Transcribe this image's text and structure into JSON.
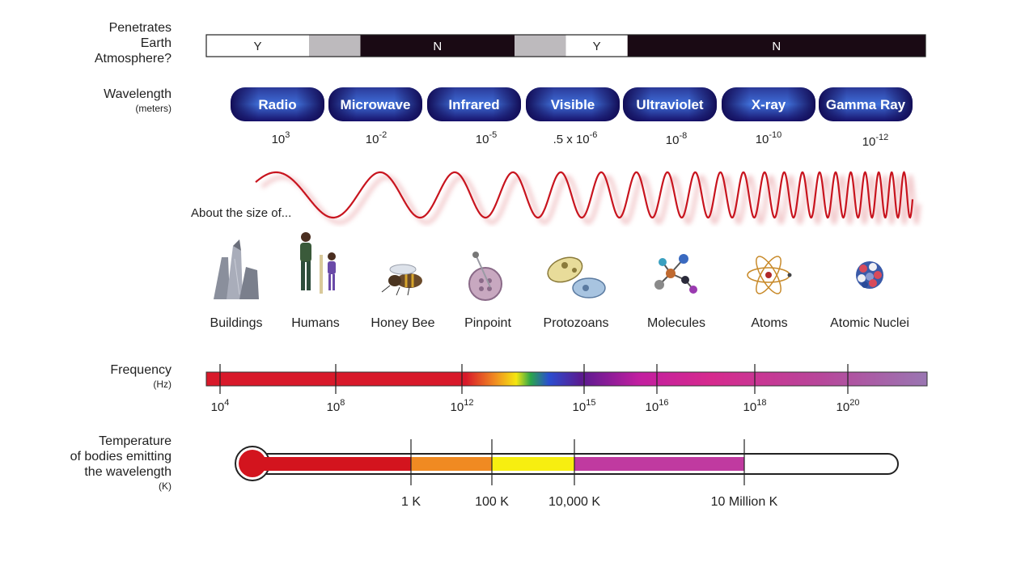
{
  "atmosphere": {
    "label": [
      "Penetrates",
      "Earth",
      "Atmosphere?"
    ],
    "segments": [
      {
        "text": "Y",
        "from": 0,
        "to": 1,
        "color": "#ffffff",
        "textColor": "#222222"
      },
      {
        "text": "",
        "from": 1,
        "to": 1.5,
        "color": "#bdbabd",
        "textColor": "#222222"
      },
      {
        "text": "N",
        "from": 1.5,
        "to": 3,
        "color": "#1a0a14",
        "textColor": "#ffffff"
      },
      {
        "text": "",
        "from": 3,
        "to": 3.5,
        "color": "#bdbabd",
        "textColor": "#222222"
      },
      {
        "text": "Y",
        "from": 3.5,
        "to": 4.1,
        "color": "#ffffff",
        "textColor": "#222222"
      },
      {
        "text": "N",
        "from": 4.1,
        "to": 7,
        "color": "#1a0a14",
        "textColor": "#ffffff"
      }
    ]
  },
  "wavelength": {
    "label": "Wavelength",
    "unit": "(meters)",
    "bands": [
      "Radio",
      "Microwave",
      "Infrared",
      "Visible",
      "Ultraviolet",
      "X-ray",
      "Gamma Ray"
    ],
    "values": [
      {
        "base": "10",
        "exp": "3"
      },
      {
        "base": "10",
        "exp": "-2"
      },
      {
        "base": "10",
        "exp": "-5"
      },
      {
        "base": ".5 x 10",
        "exp": "-6"
      },
      {
        "base": "10",
        "exp": "-8"
      },
      {
        "base": "10",
        "exp": "-10"
      },
      {
        "base": "10",
        "exp": "-12"
      }
    ]
  },
  "size": {
    "label": "About the size of...",
    "items": [
      {
        "name": "Buildings",
        "icon": "buildings-icon"
      },
      {
        "name": "Humans",
        "icon": "humans-icon"
      },
      {
        "name": "Honey Bee",
        "icon": "honey-bee-icon"
      },
      {
        "name": "Pinpoint",
        "icon": "pinpoint-icon"
      },
      {
        "name": "Protozoans",
        "icon": "protozoans-icon"
      },
      {
        "name": "Molecules",
        "icon": "molecules-icon"
      },
      {
        "name": "Atoms",
        "icon": "atoms-icon"
      },
      {
        "name": "Atomic Nuclei",
        "icon": "atomic-nuclei-icon"
      }
    ]
  },
  "frequency": {
    "label": "Frequency",
    "unit": "(Hz)",
    "ticks": [
      {
        "base": "10",
        "exp": "4"
      },
      {
        "base": "10",
        "exp": "8"
      },
      {
        "base": "10",
        "exp": "12"
      },
      {
        "base": "10",
        "exp": "15"
      },
      {
        "base": "10",
        "exp": "16"
      },
      {
        "base": "10",
        "exp": "18"
      },
      {
        "base": "10",
        "exp": "20"
      }
    ]
  },
  "temperature": {
    "label": [
      "Temperature",
      "of bodies emitting",
      "the wavelength"
    ],
    "unit": "(K)",
    "ticks": [
      "1 K",
      "100 K",
      "10,000 K",
      "10 Million K"
    ],
    "colors": [
      "#d3141e",
      "#f08a22",
      "#f7ee10",
      "#c03aa0",
      "#ffffff"
    ]
  },
  "colors": {
    "wave": "#c8141e",
    "bandDark": "#15105a",
    "bandLight": "#3a5fd0"
  }
}
